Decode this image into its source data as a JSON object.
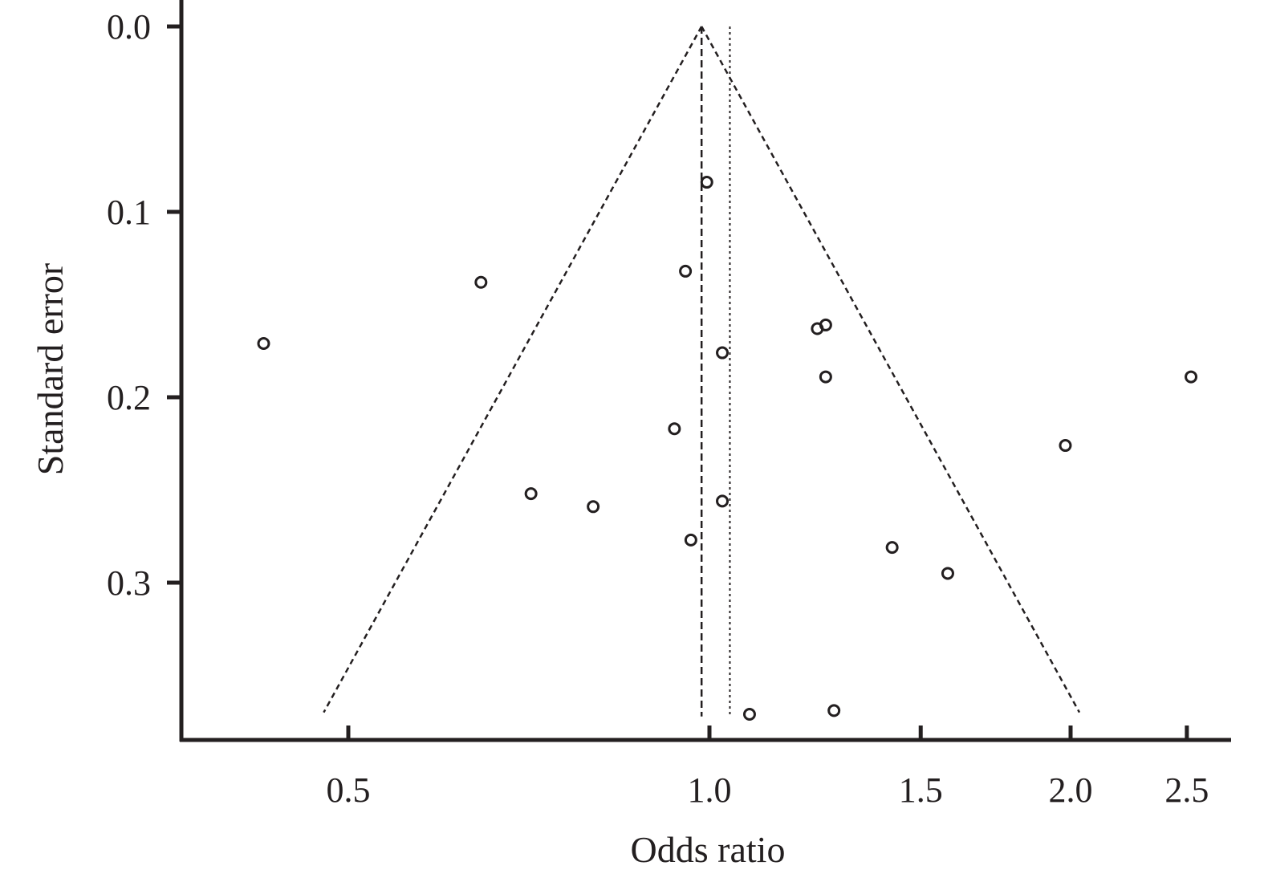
{
  "chart_data": {
    "type": "scatter",
    "title": "",
    "xlabel": "Odds ratio",
    "ylabel": "Standard error",
    "x_scale": "log",
    "x_ticks": [
      0.5,
      1.0,
      1.5,
      2.0,
      2.5
    ],
    "x_tick_labels": [
      "0.5",
      "1.0",
      "1.5",
      "2.0",
      "2.5"
    ],
    "y_ticks": [
      0.0,
      0.1,
      0.2,
      0.3
    ],
    "y_tick_labels": [
      "0.0",
      "0.1",
      "0.2",
      "0.3"
    ],
    "y_inverted": true,
    "xlim": [
      0.42,
      2.73
    ],
    "ylim": [
      0.0,
      0.385
    ],
    "pooled_or_fixed": 0.985,
    "pooled_or_random": 1.04,
    "funnel_se_max": 0.37,
    "grid": false,
    "points": [
      {
        "x": 0.425,
        "y": 0.171
      },
      {
        "x": 0.645,
        "y": 0.138
      },
      {
        "x": 0.71,
        "y": 0.252
      },
      {
        "x": 0.8,
        "y": 0.259
      },
      {
        "x": 0.955,
        "y": 0.132
      },
      {
        "x": 0.995,
        "y": 0.084
      },
      {
        "x": 1.025,
        "y": 0.176
      },
      {
        "x": 1.23,
        "y": 0.163
      },
      {
        "x": 1.25,
        "y": 0.161
      },
      {
        "x": 1.25,
        "y": 0.189
      },
      {
        "x": 0.935,
        "y": 0.217
      },
      {
        "x": 1.025,
        "y": 0.256
      },
      {
        "x": 0.965,
        "y": 0.277
      },
      {
        "x": 1.42,
        "y": 0.281
      },
      {
        "x": 1.58,
        "y": 0.295
      },
      {
        "x": 1.98,
        "y": 0.226
      },
      {
        "x": 2.52,
        "y": 0.189
      },
      {
        "x": 1.08,
        "y": 0.371
      },
      {
        "x": 1.27,
        "y": 0.369
      }
    ]
  }
}
